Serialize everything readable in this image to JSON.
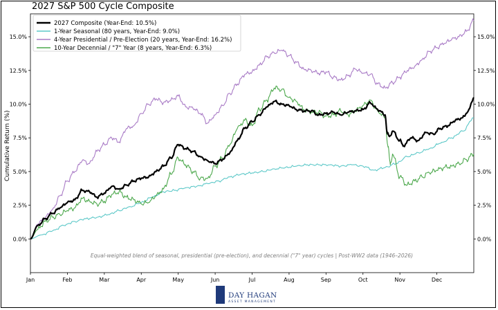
{
  "chart_data": {
    "type": "line",
    "title": "2027 S&P 500 Cycle Composite",
    "ylabel": "Cumulative Return (%)",
    "xlabel": "",
    "months": [
      "Jan",
      "Feb",
      "Mar",
      "Apr",
      "May",
      "Jun",
      "Jul",
      "Aug",
      "Sep",
      "Oct",
      "Nov",
      "Dec"
    ],
    "xlim": [
      0,
      12
    ],
    "ylim": [
      -2.5,
      16.7
    ],
    "yticks": [
      "0.0%",
      "2.5%",
      "5.0%",
      "7.5%",
      "10.0%",
      "12.5%",
      "15.0%"
    ],
    "ytick_values": [
      0,
      2.5,
      5,
      7.5,
      10,
      12.5,
      15
    ],
    "legend_position": "top-left",
    "grid": false,
    "annotation": "Equal-weighted blend of seasonal, presidential (pre-election), and decennial (\"7\" year) cycles  |  Post-WW2 data (1946–2026)",
    "series": [
      {
        "name": "2027 Composite (Year-End: 10.5%)",
        "color": "#000000",
        "width": 2.2,
        "anchors": [
          [
            0,
            0
          ],
          [
            0.2,
            1.0
          ],
          [
            0.4,
            1.5
          ],
          [
            0.6,
            1.9
          ],
          [
            0.8,
            2.3
          ],
          [
            1.0,
            2.7
          ],
          [
            1.2,
            2.9
          ],
          [
            1.4,
            3.6
          ],
          [
            1.6,
            3.5
          ],
          [
            1.8,
            3.1
          ],
          [
            2.0,
            3.4
          ],
          [
            2.2,
            3.9
          ],
          [
            2.4,
            3.7
          ],
          [
            2.6,
            4.0
          ],
          [
            2.8,
            4.3
          ],
          [
            3.0,
            4.5
          ],
          [
            3.2,
            4.6
          ],
          [
            3.4,
            5.0
          ],
          [
            3.6,
            5.4
          ],
          [
            3.8,
            6.0
          ],
          [
            4.0,
            7.0
          ],
          [
            4.2,
            6.7
          ],
          [
            4.4,
            6.5
          ],
          [
            4.6,
            6.1
          ],
          [
            4.8,
            5.8
          ],
          [
            5.0,
            5.6
          ],
          [
            5.2,
            5.9
          ],
          [
            5.4,
            6.4
          ],
          [
            5.6,
            7.3
          ],
          [
            5.8,
            8.2
          ],
          [
            6.0,
            8.7
          ],
          [
            6.2,
            9.2
          ],
          [
            6.4,
            9.8
          ],
          [
            6.6,
            10.2
          ],
          [
            6.8,
            10.0
          ],
          [
            7.0,
            9.9
          ],
          [
            7.2,
            9.6
          ],
          [
            7.4,
            9.5
          ],
          [
            7.6,
            9.5
          ],
          [
            7.8,
            9.2
          ],
          [
            8.0,
            9.3
          ],
          [
            8.2,
            9.4
          ],
          [
            8.4,
            9.2
          ],
          [
            8.6,
            9.4
          ],
          [
            8.8,
            9.5
          ],
          [
            9.0,
            9.6
          ],
          [
            9.2,
            10.1
          ],
          [
            9.4,
            9.6
          ],
          [
            9.6,
            9.2
          ],
          [
            9.66,
            7.8
          ],
          [
            9.72,
            7.6
          ],
          [
            9.8,
            8.0
          ],
          [
            10.0,
            7.3
          ],
          [
            10.1,
            6.9
          ],
          [
            10.3,
            7.5
          ],
          [
            10.5,
            7.3
          ],
          [
            10.7,
            7.9
          ],
          [
            10.9,
            7.8
          ],
          [
            11.1,
            8.2
          ],
          [
            11.3,
            8.4
          ],
          [
            11.5,
            8.8
          ],
          [
            11.7,
            9.0
          ],
          [
            11.85,
            9.5
          ],
          [
            12.0,
            10.5
          ]
        ],
        "wiggle": 0.12
      },
      {
        "name": "1-Year Seasonal (80 years, Year-End: 9.0%)",
        "color": "#5cc8c8",
        "width": 1.1,
        "anchors": [
          [
            0,
            0
          ],
          [
            0.3,
            0.3
          ],
          [
            0.6,
            0.6
          ],
          [
            0.9,
            1.0
          ],
          [
            1.2,
            1.3
          ],
          [
            1.5,
            1.5
          ],
          [
            1.8,
            1.6
          ],
          [
            2.1,
            1.8
          ],
          [
            2.4,
            2.1
          ],
          [
            2.7,
            2.4
          ],
          [
            3.0,
            2.7
          ],
          [
            3.3,
            3.1
          ],
          [
            3.6,
            3.5
          ],
          [
            3.9,
            3.6
          ],
          [
            4.2,
            3.8
          ],
          [
            4.5,
            3.9
          ],
          [
            4.8,
            4.1
          ],
          [
            5.1,
            4.3
          ],
          [
            5.4,
            4.6
          ],
          [
            5.7,
            4.8
          ],
          [
            6.0,
            4.9
          ],
          [
            6.3,
            5.0
          ],
          [
            6.6,
            5.2
          ],
          [
            6.9,
            5.3
          ],
          [
            7.2,
            5.4
          ],
          [
            7.5,
            5.5
          ],
          [
            7.8,
            5.5
          ],
          [
            8.1,
            5.5
          ],
          [
            8.4,
            5.4
          ],
          [
            8.7,
            5.5
          ],
          [
            9.0,
            5.4
          ],
          [
            9.3,
            5.1
          ],
          [
            9.6,
            5.3
          ],
          [
            9.9,
            5.6
          ],
          [
            10.2,
            6.1
          ],
          [
            10.5,
            6.4
          ],
          [
            10.8,
            6.7
          ],
          [
            11.1,
            7.1
          ],
          [
            11.4,
            7.5
          ],
          [
            11.7,
            8.0
          ],
          [
            12.0,
            9.0
          ]
        ],
        "wiggle": 0.09
      },
      {
        "name": "4-Year Presidential / Pre-Election (20 years, Year-End: 16.2%)",
        "color": "#a97bc6",
        "width": 1.1,
        "anchors": [
          [
            0,
            0
          ],
          [
            0.2,
            1.1
          ],
          [
            0.4,
            1.6
          ],
          [
            0.6,
            2.2
          ],
          [
            0.8,
            3.2
          ],
          [
            1.0,
            4.3
          ],
          [
            1.2,
            5.0
          ],
          [
            1.4,
            5.8
          ],
          [
            1.6,
            5.6
          ],
          [
            1.8,
            6.5
          ],
          [
            2.0,
            7.0
          ],
          [
            2.2,
            7.5
          ],
          [
            2.4,
            7.2
          ],
          [
            2.6,
            8.2
          ],
          [
            2.8,
            8.4
          ],
          [
            3.0,
            9.3
          ],
          [
            3.2,
            10.0
          ],
          [
            3.4,
            10.4
          ],
          [
            3.6,
            10.1
          ],
          [
            3.8,
            10.3
          ],
          [
            4.0,
            10.6
          ],
          [
            4.2,
            9.8
          ],
          [
            4.4,
            9.7
          ],
          [
            4.6,
            9.3
          ],
          [
            4.8,
            8.6
          ],
          [
            5.0,
            9.2
          ],
          [
            5.2,
            9.9
          ],
          [
            5.4,
            10.8
          ],
          [
            5.6,
            11.5
          ],
          [
            5.8,
            12.2
          ],
          [
            6.0,
            12.4
          ],
          [
            6.2,
            12.9
          ],
          [
            6.4,
            13.5
          ],
          [
            6.6,
            13.8
          ],
          [
            6.8,
            14.0
          ],
          [
            7.0,
            13.6
          ],
          [
            7.2,
            13.1
          ],
          [
            7.4,
            12.6
          ],
          [
            7.6,
            12.5
          ],
          [
            7.8,
            12.3
          ],
          [
            8.0,
            12.4
          ],
          [
            8.2,
            12.0
          ],
          [
            8.4,
            11.8
          ],
          [
            8.6,
            12.1
          ],
          [
            8.8,
            12.6
          ],
          [
            9.0,
            12.3
          ],
          [
            9.2,
            12.2
          ],
          [
            9.4,
            11.5
          ],
          [
            9.6,
            11.2
          ],
          [
            9.8,
            11.6
          ],
          [
            10.0,
            12.0
          ],
          [
            10.2,
            12.5
          ],
          [
            10.4,
            12.8
          ],
          [
            10.6,
            13.3
          ],
          [
            10.8,
            13.9
          ],
          [
            11.0,
            14.2
          ],
          [
            11.2,
            14.5
          ],
          [
            11.4,
            14.8
          ],
          [
            11.6,
            15.0
          ],
          [
            11.8,
            15.4
          ],
          [
            12.0,
            16.2
          ]
        ],
        "wiggle": 0.18
      },
      {
        "name": "10-Year Decennial / \"7\" Year (8 years, Year-End: 6.3%)",
        "color": "#4ca84c",
        "width": 1.1,
        "anchors": [
          [
            0,
            0
          ],
          [
            0.2,
            0.7
          ],
          [
            0.4,
            1.3
          ],
          [
            0.6,
            1.6
          ],
          [
            0.8,
            1.8
          ],
          [
            1.0,
            2.1
          ],
          [
            1.2,
            2.3
          ],
          [
            1.4,
            3.0
          ],
          [
            1.6,
            2.8
          ],
          [
            1.8,
            2.6
          ],
          [
            2.0,
            2.8
          ],
          [
            2.2,
            3.3
          ],
          [
            2.4,
            3.5
          ],
          [
            2.6,
            3.1
          ],
          [
            2.8,
            2.9
          ],
          [
            3.0,
            2.6
          ],
          [
            3.2,
            2.7
          ],
          [
            3.4,
            3.2
          ],
          [
            3.6,
            3.7
          ],
          [
            3.8,
            4.8
          ],
          [
            4.0,
            6.0
          ],
          [
            4.2,
            5.5
          ],
          [
            4.4,
            5.0
          ],
          [
            4.6,
            4.5
          ],
          [
            4.8,
            4.5
          ],
          [
            5.0,
            5.4
          ],
          [
            5.2,
            6.0
          ],
          [
            5.4,
            7.0
          ],
          [
            5.6,
            8.2
          ],
          [
            5.8,
            8.8
          ],
          [
            6.0,
            8.4
          ],
          [
            6.2,
            9.6
          ],
          [
            6.4,
            10.3
          ],
          [
            6.6,
            11.2
          ],
          [
            6.8,
            11.1
          ],
          [
            7.0,
            10.5
          ],
          [
            7.2,
            10.2
          ],
          [
            7.4,
            9.6
          ],
          [
            7.6,
            9.4
          ],
          [
            7.8,
            9.4
          ],
          [
            8.0,
            9.1
          ],
          [
            8.2,
            9.2
          ],
          [
            8.4,
            9.5
          ],
          [
            8.6,
            9.2
          ],
          [
            8.8,
            9.5
          ],
          [
            9.0,
            9.9
          ],
          [
            9.2,
            10.3
          ],
          [
            9.4,
            9.5
          ],
          [
            9.6,
            9.0
          ],
          [
            9.68,
            6.8
          ],
          [
            9.74,
            5.5
          ],
          [
            9.8,
            6.3
          ],
          [
            10.0,
            4.6
          ],
          [
            10.2,
            4.0
          ],
          [
            10.4,
            4.3
          ],
          [
            10.6,
            4.6
          ],
          [
            10.8,
            4.9
          ],
          [
            11.0,
            5.1
          ],
          [
            11.2,
            5.3
          ],
          [
            11.4,
            5.4
          ],
          [
            11.6,
            5.6
          ],
          [
            11.8,
            5.9
          ],
          [
            12.0,
            6.3
          ]
        ],
        "wiggle": 0.22
      }
    ]
  },
  "logo": {
    "name": "DAY HAGAN",
    "subtitle": "ASSET MANAGEMENT"
  }
}
